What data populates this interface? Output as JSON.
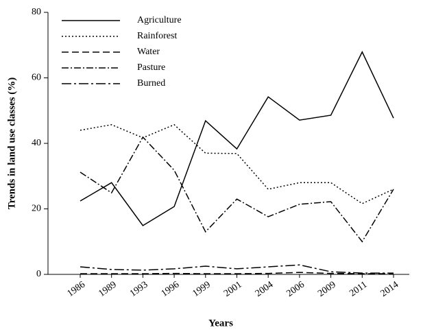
{
  "chart_data": {
    "type": "line",
    "x_label": "Years",
    "y_label": "Trends in land use classes (%)",
    "categories": [
      "1986",
      "1989",
      "1993",
      "1996",
      "1999",
      "2001",
      "2004",
      "2006",
      "2009",
      "2011",
      "2014"
    ],
    "series": [
      {
        "name": "Agriculture",
        "color": "#000000",
        "values": [
          22.4,
          28,
          14.9,
          20.7,
          46.9,
          38.3,
          54.2,
          47.1,
          48.6,
          67.9,
          47.7
        ]
      },
      {
        "name": "Rainforest",
        "color": "#000000",
        "values": [
          44,
          45.7,
          41.7,
          45.7,
          37,
          36.9,
          26,
          28,
          28,
          21.6,
          26
        ]
      },
      {
        "name": "Water",
        "color": "#000000",
        "values": [
          0.2,
          0.2,
          0.2,
          0.3,
          0.2,
          0.2,
          0.3,
          0.6,
          0.3,
          0.2,
          0.2
        ]
      },
      {
        "name": "Pasture",
        "color": "#000000",
        "values": [
          31.2,
          24.9,
          41.9,
          31.8,
          13,
          23,
          17.6,
          21.4,
          22.2,
          10,
          26
        ]
      },
      {
        "name": "Burned",
        "color": "#000000",
        "values": [
          2.3,
          1.5,
          1.3,
          1.7,
          2.5,
          1.7,
          2.3,
          2.9,
          0.8,
          0.4,
          0.4
        ]
      }
    ],
    "ylim": [
      0,
      80
    ],
    "yticks": [
      0,
      20,
      40,
      60,
      80
    ],
    "grid": false,
    "legend": "top-left"
  }
}
